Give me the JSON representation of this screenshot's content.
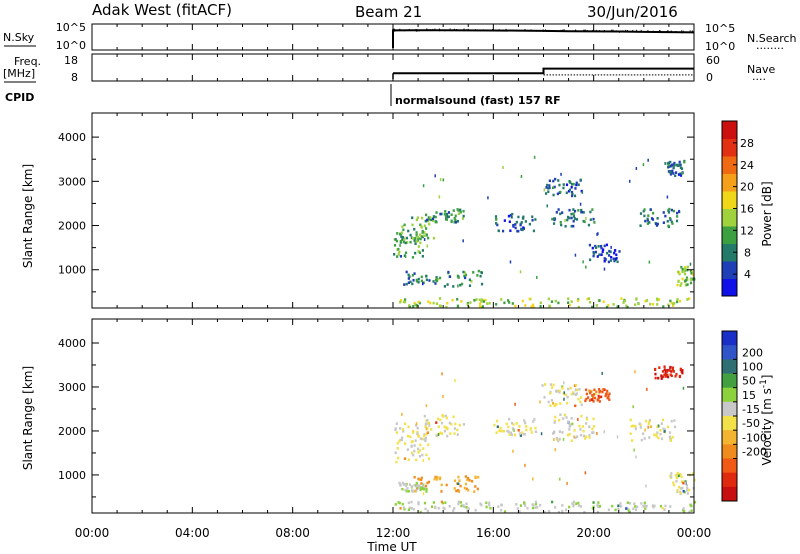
{
  "header": {
    "radar": "Adak West (fitACF)",
    "beam": "Beam 21",
    "date": "30/Jun/2016"
  },
  "nsky_panel": {
    "left_label": "N.Sky",
    "left_ticks": [
      "10^5",
      "10^0"
    ],
    "right_ticks": [
      "10^5",
      "10^0"
    ],
    "right_label": "N.Search",
    "right_label_dots": "........"
  },
  "freq_panel": {
    "left_label_1": "Freq.",
    "left_label_2": "[MHz]",
    "left_ticks": [
      "18",
      "8"
    ],
    "right_ticks": [
      "60",
      "0"
    ],
    "right_label": "Nave",
    "right_label_dots": "...."
  },
  "cpid": {
    "label": "CPID",
    "program": "normalsound (fast) 157 RF"
  },
  "time_axis": {
    "title": "Time UT",
    "ticks": [
      "00:00",
      "04:00",
      "08:00",
      "12:00",
      "16:00",
      "20:00",
      "00:00"
    ]
  },
  "range_axis": {
    "title": "Slant Range [km]",
    "ticks": [
      "1000",
      "2000",
      "3000",
      "4000"
    ]
  },
  "power_scale": {
    "title": "Power [dB]",
    "ticks": [
      "4",
      "8",
      "12",
      "16",
      "20",
      "24",
      "28"
    ],
    "colors": [
      "#1010e8",
      "#1e3fb5",
      "#237a68",
      "#3ca040",
      "#9fd23c",
      "#f0d71a",
      "#f5a01a",
      "#f06a12",
      "#e23012",
      "#cc0f0f"
    ]
  },
  "velocity_scale": {
    "title": "Velocity [m s^-1]",
    "ticks": [
      "200",
      "100",
      "50",
      "15",
      "-15",
      "-50",
      "-100",
      "-200"
    ],
    "colors": [
      "#1a2fc8",
      "#2f55c8",
      "#2f6e72",
      "#42a040",
      "#8cd23c",
      "#c8c8c8",
      "#f3e14a",
      "#f3b432",
      "#f08c1e",
      "#f05a14",
      "#e02a10",
      "#c80f0f"
    ]
  },
  "chart_data": [
    {
      "type": "line",
      "panel": "N.Sky / N.Search",
      "x_unit": "hours UT",
      "y_scale": "log",
      "ylim_left": [
        1,
        100000
      ],
      "ylim_right": [
        1,
        100000
      ],
      "series": [
        {
          "x": [
            12,
            13,
            14,
            15,
            16,
            17,
            18,
            19,
            20,
            21,
            22,
            23,
            24
          ],
          "y": [
            10000,
            11000,
            11000,
            10000,
            9500,
            9000,
            8000,
            6500,
            6000,
            5500,
            4500,
            4000,
            3500
          ]
        }
      ]
    },
    {
      "type": "line",
      "panel": "Freq. / Nave",
      "x_unit": "hours UT",
      "ylim_left": [
        8,
        18
      ],
      "ylim_right": [
        0,
        60
      ],
      "series": [
        {
          "x": [
            12,
            18,
            18,
            24
          ],
          "y": [
            10.5,
            10.5,
            12.5,
            12.5
          ]
        },
        {
          "x": [
            18,
            24
          ],
          "y": [
            10,
            10
          ]
        }
      ]
    },
    {
      "type": "heatmap",
      "panel": "Power",
      "x_unit": "hours UT",
      "xlim": [
        0,
        24
      ],
      "ylim": [
        180,
        4500
      ],
      "clim": [
        0,
        32
      ],
      "blobs": [
        {
          "t": [
            12.0,
            13.2
          ],
          "r": [
            1300,
            1900
          ],
          "value": 10
        },
        {
          "t": [
            12.3,
            13.6
          ],
          "r": [
            1600,
            2300
          ],
          "value": 12
        },
        {
          "t": [
            13.2,
            14.8
          ],
          "r": [
            2100,
            2400
          ],
          "value": 9
        },
        {
          "t": [
            12.4,
            15.6
          ],
          "r": [
            650,
            1000
          ],
          "value": 9
        },
        {
          "t": [
            16.0,
            17.7
          ],
          "r": [
            1900,
            2300
          ],
          "value": 6
        },
        {
          "t": [
            18.0,
            19.5
          ],
          "r": [
            2700,
            3100
          ],
          "value": 6
        },
        {
          "t": [
            18.3,
            20.0
          ],
          "r": [
            2000,
            2400
          ],
          "value": 7
        },
        {
          "t": [
            19.8,
            21.0
          ],
          "r": [
            1200,
            1600
          ],
          "value": 4
        },
        {
          "t": [
            21.8,
            23.4
          ],
          "r": [
            2000,
            2400
          ],
          "value": 8
        },
        {
          "t": [
            22.9,
            23.6
          ],
          "r": [
            3150,
            3500
          ],
          "value": 6
        },
        {
          "t": [
            23.2,
            24.0
          ],
          "r": [
            650,
            1100
          ],
          "value": 13
        },
        {
          "t": [
            12.0,
            24.0
          ],
          "r": [
            180,
            380
          ],
          "value": 14
        }
      ]
    },
    {
      "type": "heatmap",
      "panel": "Velocity",
      "x_unit": "hours UT",
      "xlim": [
        0,
        24
      ],
      "ylim": [
        180,
        4500
      ],
      "clim": [
        -250,
        250
      ],
      "blobs": [
        {
          "t": [
            12.0,
            13.4
          ],
          "r": [
            1300,
            2200
          ],
          "value": 0
        },
        {
          "t": [
            13.2,
            14.8
          ],
          "r": [
            1900,
            2400
          ],
          "value": 0
        },
        {
          "t": [
            12.8,
            15.4
          ],
          "r": [
            650,
            1000
          ],
          "value": -80
        },
        {
          "t": [
            12.2,
            13.3
          ],
          "r": [
            650,
            850
          ],
          "value": 40
        },
        {
          "t": [
            16.0,
            17.7
          ],
          "r": [
            1900,
            2300
          ],
          "value": 0
        },
        {
          "t": [
            17.9,
            19.6
          ],
          "r": [
            2600,
            3100
          ],
          "value": 0
        },
        {
          "t": [
            19.6,
            20.6
          ],
          "r": [
            2700,
            3000
          ],
          "value": -150
        },
        {
          "t": [
            18.3,
            20.0
          ],
          "r": [
            1800,
            2400
          ],
          "value": 0
        },
        {
          "t": [
            21.4,
            23.2
          ],
          "r": [
            1800,
            2300
          ],
          "value": 0
        },
        {
          "t": [
            22.4,
            23.5
          ],
          "r": [
            3200,
            3500
          ],
          "value": -200
        },
        {
          "t": [
            23.0,
            24.0
          ],
          "r": [
            600,
            1100
          ],
          "value": 0
        },
        {
          "t": [
            12.0,
            24.0
          ],
          "r": [
            180,
            420
          ],
          "value": 30
        }
      ]
    }
  ]
}
